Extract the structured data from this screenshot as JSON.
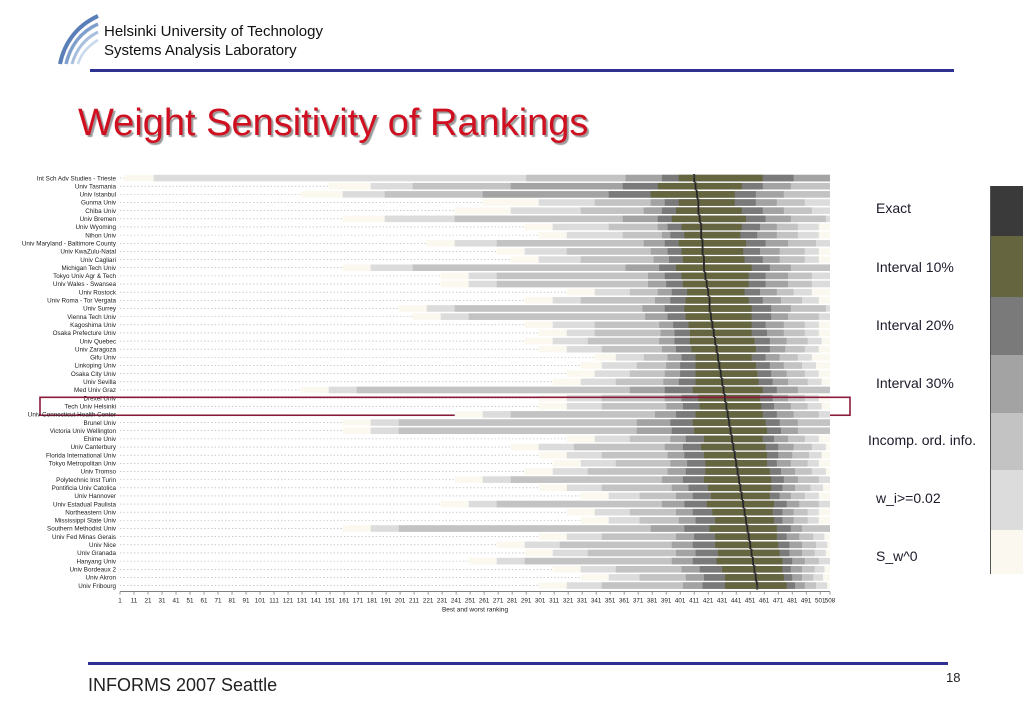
{
  "header": {
    "org_line1": "Helsinki University of Technology",
    "org_line2": "Systems Analysis Laboratory"
  },
  "slide": {
    "title": "Weight Sensitivity of Rankings"
  },
  "footer": {
    "conference": "INFORMS 2007 Seattle",
    "page_number": "18"
  },
  "legend": {
    "items": [
      {
        "label": "Exact",
        "color": "#3a3a3a"
      },
      {
        "label": "Interval 10%",
        "color": "#65653f"
      },
      {
        "label": "Interval 20%",
        "color": "#7a7a7a"
      },
      {
        "label": "Interval 30%",
        "color": "#a3a3a3"
      },
      {
        "label": "Incomp. ord. info.",
        "color": "#c3c3c3"
      },
      {
        "label": "w_i>=0.02",
        "color": "#dcdcdc"
      },
      {
        "label": "S_w^0",
        "color": "#fbf9ef"
      }
    ]
  },
  "chart_data": {
    "type": "bar",
    "orientation": "horizontal",
    "xlabel": "Best and worst ranking",
    "xlim": [
      1,
      508
    ],
    "x_ticks": [
      "1",
      "11",
      "21",
      "31",
      "41",
      "51",
      "61",
      "71",
      "81",
      "91",
      "101",
      "111",
      "121",
      "131",
      "141",
      "151",
      "161",
      "171",
      "181",
      "191",
      "201",
      "211",
      "221",
      "231",
      "241",
      "251",
      "261",
      "271",
      "281",
      "291",
      "301",
      "311",
      "321",
      "331",
      "341",
      "351",
      "361",
      "371",
      "381",
      "391",
      "401",
      "411",
      "421",
      "431",
      "441",
      "451",
      "461",
      "471",
      "481",
      "491",
      "501",
      "508"
    ],
    "highlighted_row": "Tech Univ Helsinki",
    "series_order": [
      "S_w^0",
      "w_i>=0.02",
      "Incomp. ord. info.",
      "Interval 30%",
      "Interval 20%",
      "Interval 10%",
      "Exact"
    ],
    "rows": [
      {
        "name": "Int Sch Adv Studies - Trieste",
        "min_rank": [
          4,
          25,
          291,
          362,
          388,
          400,
          411
        ],
        "max_rank": [
          508,
          508,
          508,
          508,
          482,
          460,
          411
        ],
        "exact": 411
      },
      {
        "name": "Univ Tasmania",
        "min_rank": [
          150,
          180,
          210,
          280,
          360,
          385,
          412
        ],
        "max_rank": [
          508,
          508,
          508,
          480,
          460,
          445,
          412
        ],
        "exact": 412
      },
      {
        "name": "Univ Istanbul",
        "min_rank": [
          130,
          160,
          190,
          260,
          350,
          380,
          413
        ],
        "max_rank": [
          508,
          508,
          508,
          475,
          455,
          440,
          413
        ],
        "exact": 413
      },
      {
        "name": "Gunma Univ",
        "min_rank": [
          260,
          300,
          340,
          380,
          390,
          400,
          414
        ],
        "max_rank": [
          508,
          508,
          490,
          470,
          455,
          440,
          414
        ],
        "exact": 414
      },
      {
        "name": "Chiba Univ",
        "min_rank": [
          240,
          280,
          330,
          375,
          388,
          398,
          414
        ],
        "max_rank": [
          508,
          508,
          495,
          475,
          460,
          445,
          414
        ],
        "exact": 414
      },
      {
        "name": "Univ Bremen",
        "min_rank": [
          160,
          190,
          240,
          360,
          385,
          395,
          415
        ],
        "max_rank": [
          508,
          508,
          505,
          480,
          462,
          448,
          415
        ],
        "exact": 415
      },
      {
        "name": "Univ Wyoming",
        "min_rank": [
          290,
          310,
          350,
          385,
          392,
          402,
          416
        ],
        "max_rank": [
          508,
          500,
          485,
          470,
          458,
          445,
          416
        ],
        "exact": 416
      },
      {
        "name": "Nihon Univ",
        "min_rank": [
          300,
          320,
          360,
          388,
          394,
          404,
          416
        ],
        "max_rank": [
          508,
          500,
          485,
          470,
          456,
          444,
          416
        ],
        "exact": 416
      },
      {
        "name": "Univ Maryland - Baltimore County",
        "min_rank": [
          220,
          240,
          270,
          375,
          390,
          400,
          417
        ],
        "max_rank": [
          508,
          508,
          498,
          478,
          462,
          448,
          417
        ],
        "exact": 417
      },
      {
        "name": "Univ KwaZulu-Natal",
        "min_rank": [
          270,
          290,
          320,
          380,
          392,
          402,
          417
        ],
        "max_rank": [
          508,
          500,
          490,
          472,
          458,
          446,
          417
        ],
        "exact": 417
      },
      {
        "name": "Univ Cagliari",
        "min_rank": [
          280,
          300,
          330,
          382,
          393,
          403,
          418
        ],
        "max_rank": [
          508,
          500,
          490,
          472,
          460,
          447,
          418
        ],
        "exact": 418
      },
      {
        "name": "Michigan Tech Univ",
        "min_rank": [
          160,
          180,
          210,
          362,
          386,
          398,
          418
        ],
        "max_rank": [
          508,
          508,
          508,
          480,
          465,
          452,
          418
        ],
        "exact": 418
      },
      {
        "name": "Tokyo Univ Agr & Tech",
        "min_rank": [
          230,
          250,
          270,
          378,
          390,
          402,
          419
        ],
        "max_rank": [
          508,
          508,
          495,
          478,
          462,
          450,
          419
        ],
        "exact": 419
      },
      {
        "name": "Univ Wales - Swansea",
        "min_rank": [
          230,
          250,
          270,
          378,
          391,
          403,
          420
        ],
        "max_rank": [
          508,
          508,
          495,
          478,
          462,
          450,
          420
        ],
        "exact": 420
      },
      {
        "name": "Univ Rostock",
        "min_rank": [
          320,
          340,
          365,
          385,
          395,
          406,
          421
        ],
        "max_rank": [
          508,
          495,
          482,
          470,
          458,
          447,
          421
        ],
        "exact": 421
      },
      {
        "name": "Univ Roma - Tor Vergata",
        "min_rank": [
          290,
          310,
          330,
          383,
          394,
          405,
          422
        ],
        "max_rank": [
          508,
          500,
          488,
          473,
          460,
          450,
          422
        ],
        "exact": 422
      },
      {
        "name": "Univ Surrey",
        "min_rank": [
          200,
          220,
          240,
          374,
          390,
          404,
          422
        ],
        "max_rank": [
          508,
          508,
          505,
          480,
          466,
          452,
          422
        ],
        "exact": 422
      },
      {
        "name": "Vienna Tech Univ",
        "min_rank": [
          210,
          230,
          250,
          376,
          392,
          405,
          423
        ],
        "max_rank": [
          508,
          508,
          500,
          478,
          466,
          452,
          423
        ],
        "exact": 423
      },
      {
        "name": "Kagoshima Univ",
        "min_rank": [
          290,
          310,
          340,
          386,
          396,
          407,
          424
        ],
        "max_rank": [
          508,
          500,
          490,
          475,
          462,
          452,
          424
        ],
        "exact": 424
      },
      {
        "name": "Osaka Prefecture Univ",
        "min_rank": [
          300,
          320,
          340,
          387,
          397,
          408,
          425
        ],
        "max_rank": [
          508,
          500,
          490,
          475,
          463,
          452,
          425
        ],
        "exact": 425
      },
      {
        "name": "Univ Quebec",
        "min_rank": [
          290,
          310,
          335,
          386,
          397,
          408,
          426
        ],
        "max_rank": [
          508,
          502,
          492,
          477,
          465,
          454,
          426
        ],
        "exact": 426
      },
      {
        "name": "Univ Zaragoza",
        "min_rank": [
          300,
          320,
          345,
          388,
          398,
          409,
          427
        ],
        "max_rank": [
          508,
          500,
          490,
          476,
          465,
          455,
          427
        ],
        "exact": 427
      },
      {
        "name": "Gifu Univ",
        "min_rank": [
          340,
          355,
          375,
          392,
          402,
          412,
          428
        ],
        "max_rank": [
          508,
          495,
          485,
          472,
          462,
          452,
          428
        ],
        "exact": 428
      },
      {
        "name": "Linkoping Univ",
        "min_rank": [
          330,
          345,
          370,
          391,
          401,
          412,
          429
        ],
        "max_rank": [
          508,
          498,
          488,
          475,
          465,
          455,
          429
        ],
        "exact": 429
      },
      {
        "name": "Osaka City Univ",
        "min_rank": [
          320,
          340,
          365,
          390,
          401,
          412,
          430
        ],
        "max_rank": [
          508,
          500,
          490,
          477,
          466,
          456,
          430
        ],
        "exact": 430
      },
      {
        "name": "Univ Sevilla",
        "min_rank": [
          310,
          330,
          355,
          389,
          400,
          412,
          431
        ],
        "max_rank": [
          508,
          502,
          492,
          478,
          467,
          457,
          431
        ],
        "exact": 431
      },
      {
        "name": "Med Univ Graz",
        "min_rank": [
          130,
          150,
          170,
          365,
          390,
          410,
          432
        ],
        "max_rank": [
          508,
          508,
          508,
          485,
          470,
          460,
          432
        ],
        "exact": 432
      },
      {
        "name": "Drexel Univ",
        "min_rank": [
          300,
          320,
          345,
          390,
          402,
          414,
          433
        ],
        "max_rank": [
          508,
          500,
          490,
          478,
          467,
          458,
          433
        ],
        "exact": 433
      },
      {
        "name": "Tech Univ Helsinki",
        "min_rank": [
          300,
          320,
          345,
          391,
          403,
          415,
          434
        ],
        "max_rank": [
          508,
          502,
          492,
          480,
          468,
          459,
          434
        ],
        "exact": 434
      },
      {
        "name": "Univ Connecticut Health Center",
        "min_rank": [
          240,
          260,
          280,
          383,
          398,
          412,
          435
        ],
        "max_rank": [
          508,
          508,
          500,
          482,
          470,
          460,
          435
        ],
        "exact": 435
      },
      {
        "name": "Brunel Univ",
        "min_rank": [
          160,
          180,
          200,
          370,
          394,
          410,
          436
        ],
        "max_rank": [
          508,
          508,
          508,
          485,
          472,
          462,
          436
        ],
        "exact": 436
      },
      {
        "name": "Victoria Univ Wellington",
        "min_rank": [
          160,
          180,
          200,
          370,
          395,
          411,
          437
        ],
        "max_rank": [
          508,
          508,
          508,
          485,
          473,
          463,
          437
        ],
        "exact": 437
      },
      {
        "name": "Ehime Univ",
        "min_rank": [
          320,
          340,
          365,
          394,
          405,
          418,
          438
        ],
        "max_rank": [
          508,
          500,
          490,
          478,
          468,
          460,
          438
        ],
        "exact": 438
      },
      {
        "name": "Univ Canterbury",
        "min_rank": [
          280,
          300,
          325,
          390,
          403,
          416,
          439
        ],
        "max_rank": [
          508,
          505,
          495,
          482,
          471,
          462,
          439
        ],
        "exact": 439
      },
      {
        "name": "Florida International Univ",
        "min_rank": [
          300,
          320,
          345,
          392,
          404,
          418,
          440
        ],
        "max_rank": [
          508,
          502,
          493,
          481,
          471,
          463,
          440
        ],
        "exact": 440
      },
      {
        "name": "Tokyo Metropolitan Univ",
        "min_rank": [
          310,
          330,
          355,
          394,
          406,
          419,
          441
        ],
        "max_rank": [
          508,
          500,
          492,
          480,
          470,
          463,
          441
        ],
        "exact": 441
      },
      {
        "name": "Univ Tromso",
        "min_rank": [
          290,
          310,
          335,
          392,
          405,
          419,
          442
        ],
        "max_rank": [
          508,
          505,
          495,
          483,
          473,
          465,
          442
        ],
        "exact": 442
      },
      {
        "name": "Polytechnic Inst Turin",
        "min_rank": [
          240,
          260,
          280,
          388,
          403,
          418,
          443
        ],
        "max_rank": [
          508,
          508,
          500,
          485,
          475,
          466,
          443
        ],
        "exact": 443
      },
      {
        "name": "Pontificia Univ Catolica",
        "min_rank": [
          300,
          320,
          345,
          395,
          407,
          421,
          444
        ],
        "max_rank": [
          508,
          503,
          494,
          483,
          474,
          466,
          444
        ],
        "exact": 444
      },
      {
        "name": "Univ Hannover",
        "min_rank": [
          330,
          350,
          372,
          398,
          410,
          423,
          445
        ],
        "max_rank": [
          508,
          500,
          490,
          480,
          472,
          465,
          445
        ],
        "exact": 445
      },
      {
        "name": "Univ Estadual Paulista",
        "min_rank": [
          230,
          250,
          270,
          388,
          404,
          420,
          446
        ],
        "max_rank": [
          508,
          508,
          500,
          486,
          477,
          468,
          446
        ],
        "exact": 446
      },
      {
        "name": "Northeastern Univ",
        "min_rank": [
          320,
          340,
          365,
          398,
          410,
          424,
          447
        ],
        "max_rank": [
          508,
          500,
          492,
          482,
          474,
          467,
          447
        ],
        "exact": 447
      },
      {
        "name": "Mississippi State Univ",
        "min_rank": [
          330,
          350,
          372,
          400,
          412,
          426,
          448
        ],
        "max_rank": [
          508,
          500,
          492,
          482,
          474,
          468,
          448
        ],
        "exact": 448
      },
      {
        "name": "Southern Methodist Univ",
        "min_rank": [
          160,
          180,
          200,
          380,
          404,
          422,
          449
        ],
        "max_rank": [
          508,
          508,
          508,
          488,
          480,
          470,
          449
        ],
        "exact": 449
      },
      {
        "name": "Univ Fed Minas Gerais",
        "min_rank": [
          300,
          320,
          345,
          398,
          411,
          426,
          450
        ],
        "max_rank": [
          508,
          504,
          496,
          486,
          477,
          470,
          450
        ],
        "exact": 450
      },
      {
        "name": "Univ Nice",
        "min_rank": [
          270,
          290,
          315,
          395,
          410,
          426,
          451
        ],
        "max_rank": [
          508,
          506,
          498,
          488,
          479,
          471,
          451
        ],
        "exact": 451
      },
      {
        "name": "Univ Granada",
        "min_rank": [
          290,
          310,
          335,
          398,
          412,
          428,
          452
        ],
        "max_rank": [
          508,
          505,
          497,
          488,
          479,
          472,
          452
        ],
        "exact": 452
      },
      {
        "name": "Hanyang Univ",
        "min_rank": [
          250,
          270,
          290,
          395,
          410,
          427,
          453
        ],
        "max_rank": [
          508,
          508,
          500,
          490,
          481,
          474,
          453
        ],
        "exact": 453
      },
      {
        "name": "Univ Bordeaux 2",
        "min_rank": [
          310,
          330,
          355,
          402,
          415,
          431,
          454
        ],
        "max_rank": [
          508,
          504,
          497,
          488,
          480,
          474,
          454
        ],
        "exact": 454
      },
      {
        "name": "Univ Akron",
        "min_rank": [
          330,
          350,
          372,
          405,
          418,
          433,
          455
        ],
        "max_rank": [
          508,
          503,
          496,
          488,
          481,
          475,
          455
        ],
        "exact": 455
      },
      {
        "name": "Univ Fribourg",
        "min_rank": [
          300,
          320,
          345,
          403,
          417,
          433,
          456
        ],
        "max_rank": [
          508,
          506,
          498,
          490,
          483,
          477,
          456
        ],
        "exact": 456
      }
    ]
  }
}
